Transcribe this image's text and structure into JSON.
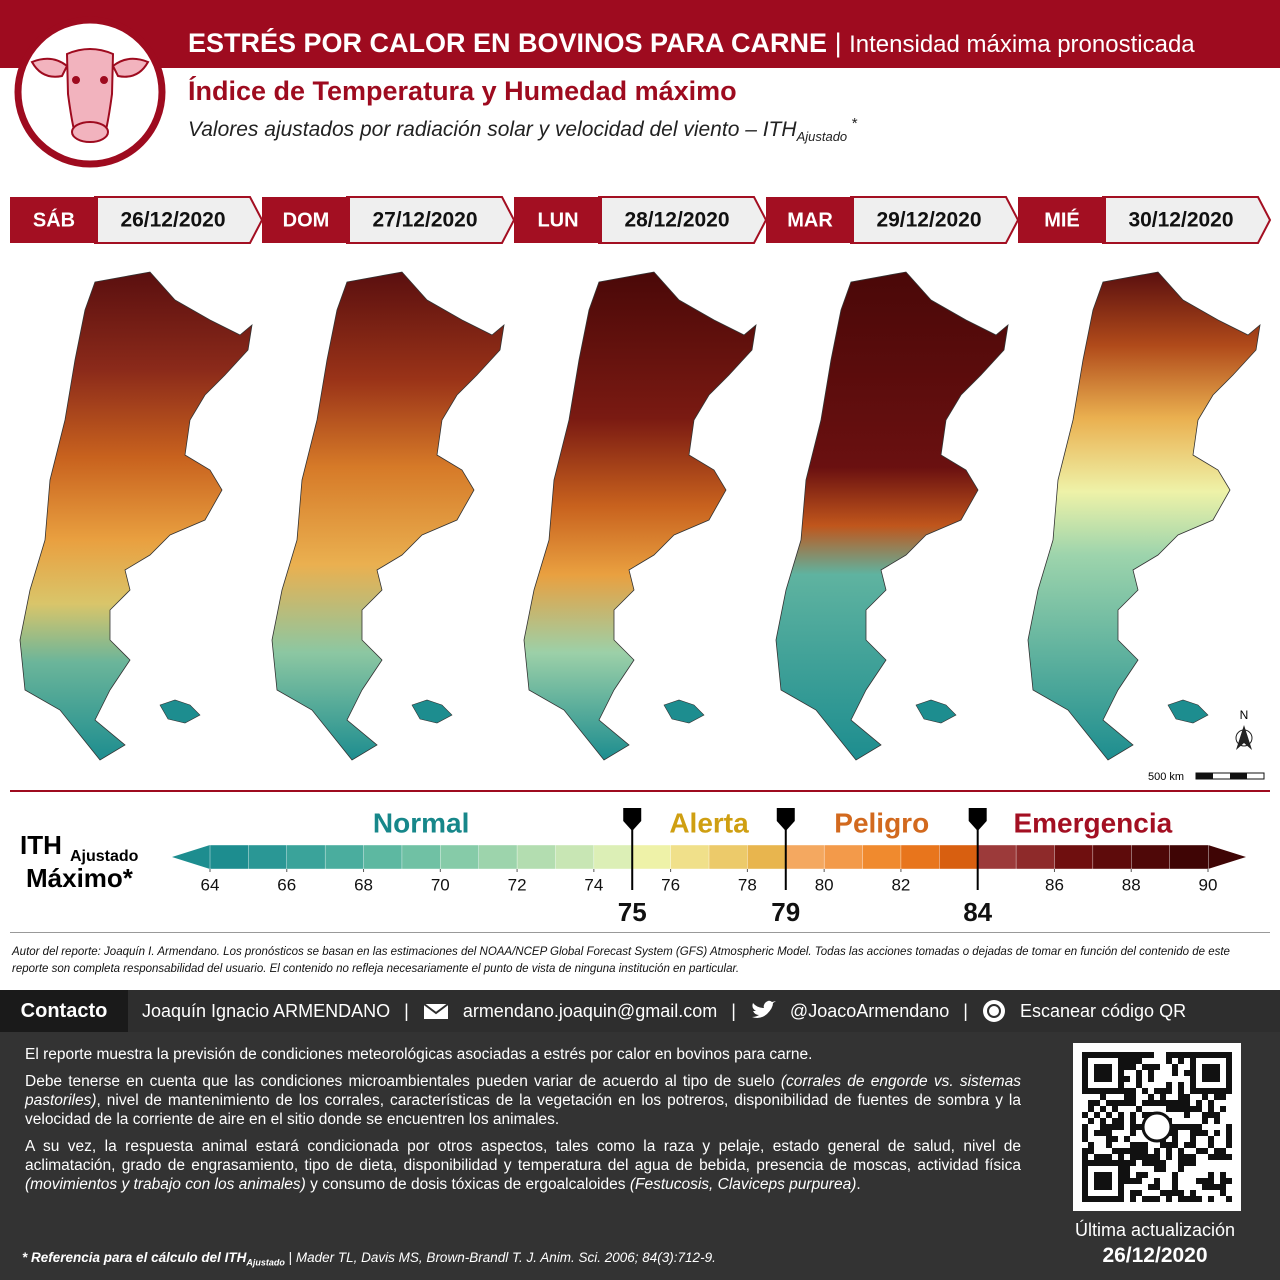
{
  "header": {
    "title": "ESTRÉS POR CALOR EN BOVINOS PARA CARNE",
    "separator": "|",
    "subtitle": "Intensidad máxima pronosticada",
    "heading": "Índice de Temperatura y Humedad máximo",
    "description": "Valores ajustados por radiación solar y velocidad del viento – ITH",
    "description_sub": "Ajustado",
    "description_sup": "*"
  },
  "days": [
    {
      "weekday": "SÁB",
      "date": "26/12/2020"
    },
    {
      "weekday": "DOM",
      "date": "27/12/2020"
    },
    {
      "weekday": "LUN",
      "date": "28/12/2020"
    },
    {
      "weekday": "MAR",
      "date": "29/12/2020"
    },
    {
      "weekday": "MIÉ",
      "date": "30/12/2020"
    }
  ],
  "map": {
    "north": "N",
    "scale": "500 km"
  },
  "chart_data": {
    "type": "colorbar",
    "title": "ITH",
    "title_sub": "Ajustado",
    "title_line2": "Máximo*",
    "xlim": [
      64,
      90
    ],
    "xticks": [
      64,
      66,
      68,
      70,
      72,
      74,
      76,
      78,
      80,
      82,
      86,
      88,
      90
    ],
    "colors": [
      "#1d8d8f",
      "#2a9795",
      "#3aa39a",
      "#4aad9e",
      "#5db8a1",
      "#70c1a4",
      "#86cba8",
      "#9dd4ac",
      "#b3ddb0",
      "#c8e6b4",
      "#dcefb6",
      "#eef2a8",
      "#f0e08a",
      "#ecca6a",
      "#e8b54e",
      "#f4a860",
      "#f39a4a",
      "#f08a2e",
      "#e8751c",
      "#d85f10",
      "#9c3a3a",
      "#8e2a2a",
      "#6f0f0f",
      "#5e0b0b",
      "#4f0808",
      "#3f0505"
    ],
    "thresholds": [
      75,
      79,
      84
    ],
    "categories": [
      {
        "name": "Normal",
        "color": "#17878a"
      },
      {
        "name": "Alerta",
        "color": "#cf9f12"
      },
      {
        "name": "Peligro",
        "color": "#d2691e"
      },
      {
        "name": "Emergencia",
        "color": "#a30f22"
      }
    ]
  },
  "disclaimer": "Autor del reporte: Joaquín I. Armendano. Los pronósticos se basan en las estimaciones del NOAA/NCEP Global Forecast System (GFS) Atmospheric Model. Todas las acciones tomadas o dejadas de tomar en función del contenido de este reporte son completa responsabilidad del usuario. El contenido no refleja necesariamente el punto de vista de ninguna institución en particular.",
  "contact": {
    "label": "Contacto",
    "name": "Joaquín Ignacio ARMENDANO",
    "separator": "|",
    "email": "armendano.joaquin@gmail.com",
    "twitter": "@JoacoArmendano",
    "qr": "Escanear código QR"
  },
  "body": {
    "p1": "El reporte muestra la previsión de condiciones meteorológicas asociadas a estrés por calor en bovinos para carne.",
    "p2": [
      "Debe tenerse en cuenta que las condiciones microambientales pueden variar de acuerdo al tipo de suelo ",
      "(corrales de engorde vs. sistemas pastoriles)",
      ", nivel de mantenimiento de los corrales, características de la vegetación en los potreros, disponibilidad de fuentes de sombra y la velocidad de la corriente de aire en el sitio donde se encuentren los animales."
    ],
    "p3": [
      "A su vez, la respuesta animal estará condicionada por otros aspectos, tales como la raza y pelaje, estado general de salud, nivel de aclimatación, grado de engrasamiento, tipo de dieta, disponibilidad y temperatura del agua de bebida, presencia de moscas, actividad física ",
      "(movimientos y trabajo con los animales)",
      " y consumo de dosis tóxicas de ergoalcaloides ",
      "(Festucosis, Claviceps purpurea)",
      "."
    ]
  },
  "update": {
    "label": "Última actualización",
    "date": "26/12/2020"
  },
  "reference": {
    "label": "* Referencia para el cálculo del ITH",
    "label_sub": "Ajustado",
    "separator": "|",
    "text": "Mader TL, Davis MS, Brown-Brandl T.  J. Anim. Sci. 2006; 84(3):712-9."
  }
}
